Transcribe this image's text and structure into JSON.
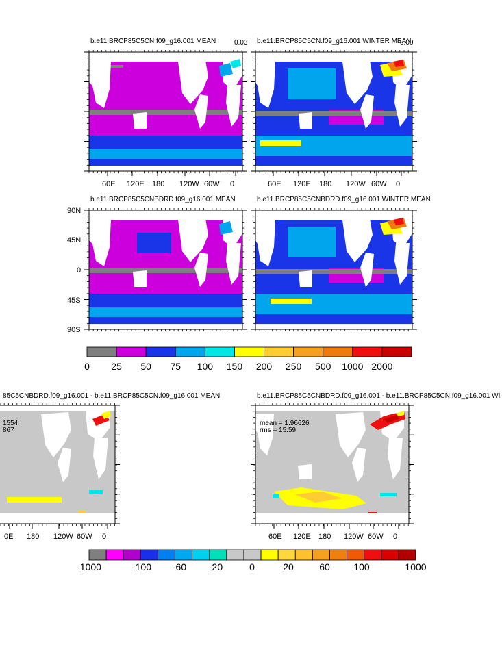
{
  "chart_data": [
    {
      "type": "heatmap",
      "title": "b.e11.BRCP85C5CN.f09_g16.001 MEAN",
      "corner_value": "0.03",
      "xticks": [
        "60E",
        "120E",
        "180",
        "120W",
        "60W",
        "0"
      ]
    },
    {
      "type": "heatmap",
      "title": "b.e11.BRCP85C5CN.f09_g16.001 WINTER MEAN",
      "corner_value": "0.00",
      "xticks": [
        "60E",
        "120E",
        "180",
        "120W",
        "60W",
        "0"
      ]
    },
    {
      "type": "heatmap",
      "title": "b.e11.BRCP85C5CNBDRD.f09_g16.001 MEAN",
      "yticks": [
        "90N",
        "45N",
        "0",
        "45S",
        "90S"
      ]
    },
    {
      "type": "heatmap",
      "title": "b.e11.BRCP85C5CNBDRD.f09_g16.001 WINTER MEAN"
    },
    {
      "type": "heatmap",
      "title": "85C5CNBDRD.f09_g16.001 - b.e11.BRCP85C5CN.f09_g16.001 MEAN",
      "stats_mean": "1554",
      "stats_rms": "867",
      "xticks": [
        "0E",
        "180",
        "120W",
        "60W",
        "0"
      ]
    },
    {
      "type": "heatmap",
      "title": "b.e11.BRCP85C5CNBDRD.f09_g16.001 - b.e11.BRCP85C5CN.f09_g16.001 WI",
      "stats_mean": "mean = 1.96626",
      "stats_rms": "rms = 15.59",
      "xticks": [
        "60E",
        "120E",
        "180",
        "120W",
        "60W",
        "0"
      ]
    }
  ],
  "colorbar_top": {
    "labels": [
      "0",
      "25",
      "50",
      "75",
      "100",
      "150",
      "200",
      "250",
      "500",
      "1000",
      "2000"
    ],
    "colors": [
      "#7f7f7f",
      "#cc00dd",
      "#1a35e8",
      "#00a5ee",
      "#00e5e5",
      "#ffff00",
      "#ffcc33",
      "#f5a020",
      "#ee7a10",
      "#ee1010",
      "#c80000"
    ]
  },
  "colorbar_bottom": {
    "labels": [
      "-1000",
      "-100",
      "-60",
      "-20",
      "0",
      "20",
      "60",
      "100",
      "1000"
    ],
    "colors": [
      "#7f7f7f",
      "#ff00ff",
      "#b000cc",
      "#1a30e8",
      "#0080ee",
      "#00a8f0",
      "#00d0f0",
      "#00e0b8",
      "#c8c8c8",
      "#c8c8c8",
      "#ffff00",
      "#ffd840",
      "#ffc030",
      "#f5a020",
      "#ee8010",
      "#ee5a05",
      "#ee1010",
      "#d80000",
      "#b00000"
    ]
  }
}
